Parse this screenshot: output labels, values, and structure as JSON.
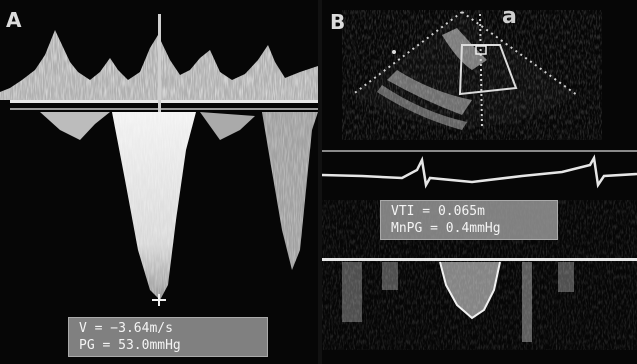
{
  "panel_a": {
    "label": "A",
    "readout": [
      "V = −3.64m/s",
      "PG = 53.0mmHg"
    ]
  },
  "panel_b": {
    "label": "B",
    "view_label": "a",
    "readout": [
      "VTI = 0.065m",
      "MnPG = 0.4mmHg"
    ]
  },
  "colors": {
    "background": "#000000",
    "signal": "#e6e6e6",
    "label_box": "#969696"
  }
}
